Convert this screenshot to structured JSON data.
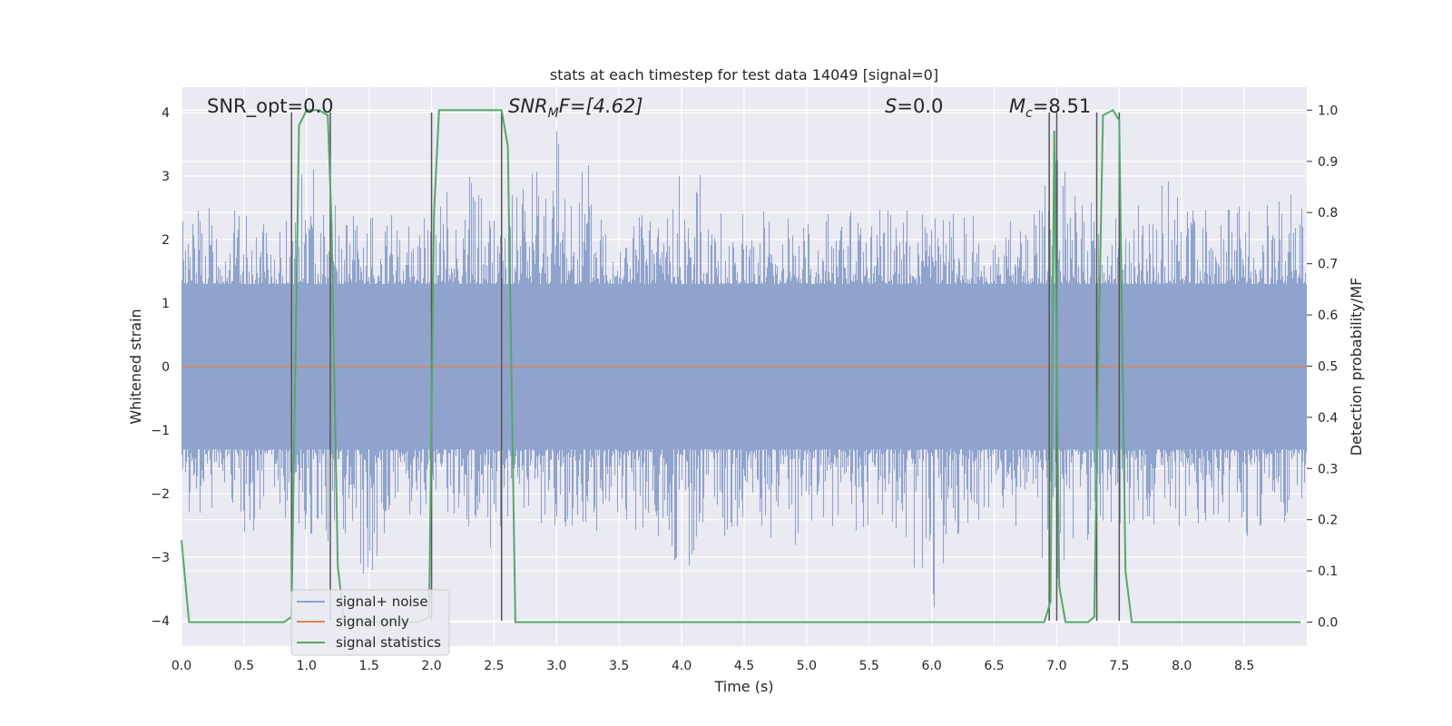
{
  "chart_data": {
    "type": "line",
    "title": "stats at each timestep for test data 14049 [signal=0]",
    "xlabel": "Time (s)",
    "ylabel": "Whitened strain",
    "ylabel_right": "Detection probability/MF",
    "xlim": [
      0.0,
      9.0
    ],
    "ylim": [
      -4.4,
      4.4
    ],
    "ylim_right": [
      -0.047,
      1.045
    ],
    "x_ticks": [
      "0.0",
      "0.5",
      "1.0",
      "1.5",
      "2.0",
      "2.5",
      "3.0",
      "3.5",
      "4.0",
      "4.5",
      "5.0",
      "5.5",
      "6.0",
      "6.5",
      "7.0",
      "7.5",
      "8.0",
      "8.5"
    ],
    "y_ticks": [
      "4",
      "3",
      "2",
      "1",
      "0",
      "−1",
      "−2",
      "−3",
      "−4"
    ],
    "y_right_ticks": [
      "1.0",
      "0.9",
      "0.8",
      "0.7",
      "0.6",
      "0.5",
      "0.4",
      "0.3",
      "0.2",
      "0.1",
      "0.0"
    ],
    "grid": true,
    "annotations": [
      {
        "id": "snr-opt",
        "text": "SNR_opt=0.0"
      },
      {
        "id": "snr-mf",
        "main": "SNR",
        "sub": "M",
        "rest": "F=[4.62]"
      },
      {
        "id": "s-stat",
        "main": "S",
        "rest": "=0.0"
      },
      {
        "id": "mc",
        "main": "M",
        "sub": "c",
        "rest": "=8.51"
      }
    ],
    "legend": {
      "placement": "lower-left",
      "entries": [
        "signal+ noise",
        "signal only",
        "signal statistics"
      ]
    },
    "colors": {
      "noise": "#8fa3cc",
      "signal": "#dd8452",
      "statistics": "#55a868",
      "vlines": "#555555",
      "background": "#eaeaf2"
    },
    "series": [
      {
        "name": "signal statistics",
        "axis": "right",
        "x": [
          0.0,
          0.06,
          0.11,
          0.82,
          0.88,
          0.94,
          1.0,
          1.1,
          1.17,
          1.2,
          1.25,
          1.3,
          1.9,
          1.98,
          2.02,
          2.06,
          2.56,
          2.61,
          2.67,
          2.7,
          6.9,
          6.95,
          6.98,
          7.02,
          7.07,
          7.12,
          7.25,
          7.3,
          7.33,
          7.37,
          7.45,
          7.5,
          7.55,
          7.6,
          7.7,
          8.95
        ],
        "y": [
          0.16,
          0.0,
          0.0,
          0.0,
          0.01,
          0.97,
          1.0,
          1.0,
          0.99,
          0.78,
          0.11,
          0.0,
          0.0,
          0.01,
          0.8,
          1.0,
          1.0,
          0.93,
          0.0,
          0.0,
          0.0,
          0.04,
          0.96,
          0.07,
          0.0,
          0.0,
          0.0,
          0.01,
          0.47,
          0.99,
          1.0,
          0.98,
          0.1,
          0.0,
          0.0,
          0.0
        ]
      },
      {
        "name": "signal only",
        "axis": "left",
        "x": [
          0.0,
          9.0
        ],
        "y": [
          0.0,
          0.0
        ]
      },
      {
        "name": "signal+ noise",
        "axis": "left",
        "envelope_x": [
          0.0,
          0.25,
          0.5,
          0.75,
          1.0,
          1.25,
          1.5,
          1.75,
          2.0,
          2.25,
          2.5,
          2.75,
          3.0,
          3.25,
          3.5,
          3.75,
          4.0,
          4.25,
          4.5,
          4.75,
          5.0,
          5.25,
          5.5,
          5.75,
          6.0,
          6.25,
          6.5,
          6.75,
          7.0,
          7.25,
          7.5,
          7.75,
          8.0,
          8.25,
          8.5,
          8.75,
          9.0
        ],
        "envelope_max": [
          2.5,
          2.8,
          2.4,
          2.2,
          3.4,
          2.6,
          2.4,
          2.4,
          2.5,
          3.4,
          2.6,
          3.4,
          4.0,
          3.3,
          2.5,
          2.4,
          3.5,
          2.7,
          2.4,
          2.6,
          2.5,
          2.5,
          2.5,
          2.5,
          2.5,
          2.6,
          2.5,
          2.6,
          3.3,
          2.6,
          2.6,
          2.8,
          3.3,
          2.6,
          2.6,
          2.7,
          2.8
        ],
        "envelope_min": [
          -2.6,
          -2.3,
          -3.0,
          -2.4,
          -2.6,
          -2.9,
          -3.4,
          -2.6,
          -2.3,
          -2.5,
          -2.9,
          -2.6,
          -2.9,
          -2.6,
          -2.6,
          -2.8,
          -3.3,
          -2.6,
          -2.8,
          -2.7,
          -3.1,
          -2.6,
          -2.7,
          -2.6,
          -4.0,
          -2.6,
          -2.5,
          -2.6,
          -3.4,
          -2.8,
          -2.6,
          -2.6,
          -2.6,
          -2.6,
          -2.7,
          -2.5,
          -2.6
        ]
      }
    ],
    "vertical_lines": {
      "x": [
        0.88,
        1.19,
        2.0,
        2.56,
        6.94,
        7.0,
        7.32,
        7.5
      ],
      "y_range": [
        -4.0,
        4.0
      ]
    }
  }
}
